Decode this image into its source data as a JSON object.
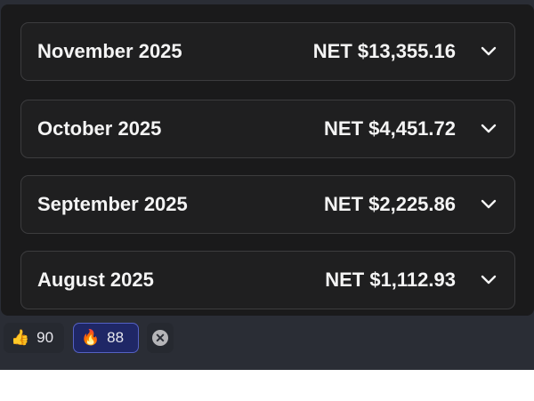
{
  "months": [
    {
      "label": "November 2025",
      "net": "NET $13,355.16"
    },
    {
      "label": "October 2025",
      "net": "NET $4,451.72"
    },
    {
      "label": "September 2025",
      "net": "NET $2,225.86"
    },
    {
      "label": "August 2025",
      "net": "NET $1,112.93"
    }
  ],
  "reactions": [
    {
      "icon": "thumbs-up-icon",
      "emoji": "👍",
      "count": "90",
      "selected": false
    },
    {
      "icon": "fire-icon",
      "emoji": "🔥",
      "count": "88",
      "selected": true
    }
  ],
  "colors": {
    "selected_border": "#5561c4",
    "selected_bg": "#1f2766"
  }
}
